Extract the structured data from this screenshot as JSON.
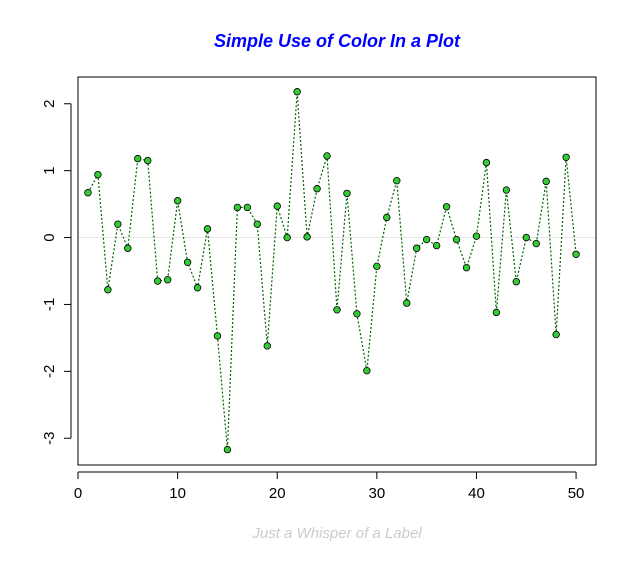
{
  "chart_data": {
    "type": "line",
    "title": "Simple Use of Color In a Plot",
    "xlabel": "Just a Whisper of a Label",
    "ylabel": "",
    "xlim": [
      0,
      52
    ],
    "ylim": [
      -3.4,
      2.4
    ],
    "x_ticks": [
      0,
      10,
      20,
      30,
      40,
      50
    ],
    "y_ticks": [
      -3,
      -2,
      -1,
      0,
      1,
      2
    ],
    "x_tick_labels": [
      "0",
      "10",
      "20",
      "30",
      "40",
      "50"
    ],
    "y_tick_labels": [
      "-3",
      "-2",
      "-1",
      "0",
      "1",
      "2"
    ],
    "reference_line_y": 0,
    "series": [
      {
        "x": [
          1,
          2,
          3,
          4,
          5,
          6,
          7,
          8,
          9,
          10,
          11,
          12,
          13,
          14,
          15,
          16,
          17,
          18,
          19,
          20,
          21,
          22,
          23,
          24,
          25,
          26,
          27,
          28,
          29,
          30,
          31,
          32,
          33,
          34,
          35,
          36,
          37,
          38,
          39,
          40,
          41,
          42,
          43,
          44,
          45,
          46,
          47,
          48,
          49,
          50
        ],
        "values": [
          0.67,
          0.94,
          -0.78,
          0.2,
          -0.16,
          1.18,
          1.15,
          -0.65,
          -0.63,
          0.55,
          -0.37,
          -0.75,
          0.13,
          -1.47,
          -3.17,
          0.45,
          0.45,
          0.2,
          -1.62,
          0.47,
          0.0,
          2.18,
          0.01,
          0.73,
          1.22,
          -1.08,
          0.66,
          -1.14,
          -1.99,
          -0.43,
          0.3,
          0.85,
          -0.98,
          -0.16,
          -0.03,
          -0.12,
          0.46,
          -0.03,
          -0.45,
          0.02,
          1.12,
          -1.12,
          0.71,
          -0.66,
          0.0,
          -0.09,
          0.84,
          -1.45,
          1.2,
          -0.25
        ]
      }
    ],
    "colors": {
      "title": "#0000ff",
      "xlabel": "#cccccc",
      "line": "#006400",
      "point_fill": "#33cc33",
      "point_stroke": "#000000",
      "reference_line": "#e6e6e6",
      "axis": "#000000"
    },
    "line_style": "dotted",
    "grid": false
  }
}
